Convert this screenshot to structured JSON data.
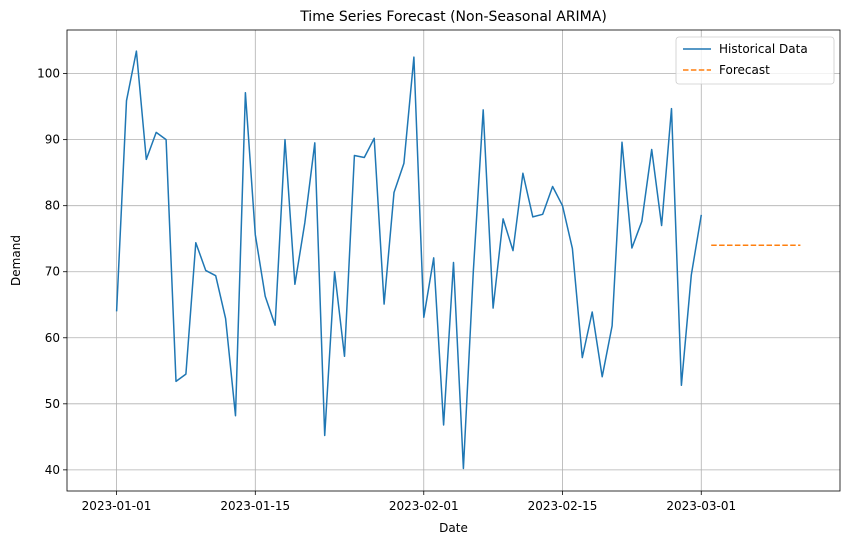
{
  "chart_data": {
    "type": "line",
    "title": "Time Series Forecast (Non-Seasonal ARIMA)",
    "xlabel": "Date",
    "ylabel": "Demand",
    "xlim": [
      "2022-12-27",
      "2023-03-15"
    ],
    "ylim": [
      36.8,
      106.6
    ],
    "xticks": [
      "2023-01-01",
      "2023-01-15",
      "2023-02-01",
      "2023-02-15",
      "2023-03-01"
    ],
    "yticks": [
      40,
      50,
      60,
      70,
      80,
      90,
      100
    ],
    "grid": true,
    "legend_position": "top-right",
    "colors": {
      "historical": "#1f77b4",
      "forecast": "#ff7f0e"
    },
    "series": [
      {
        "name": "Historical Data",
        "style": "solid",
        "x": [
          "2023-01-01",
          "2023-01-02",
          "2023-01-03",
          "2023-01-04",
          "2023-01-05",
          "2023-01-06",
          "2023-01-07",
          "2023-01-08",
          "2023-01-09",
          "2023-01-10",
          "2023-01-11",
          "2023-01-12",
          "2023-01-13",
          "2023-01-14",
          "2023-01-15",
          "2023-01-16",
          "2023-01-17",
          "2023-01-18",
          "2023-01-19",
          "2023-01-20",
          "2023-01-21",
          "2023-01-22",
          "2023-01-23",
          "2023-01-24",
          "2023-01-25",
          "2023-01-26",
          "2023-01-27",
          "2023-01-28",
          "2023-01-29",
          "2023-01-30",
          "2023-01-31",
          "2023-02-01",
          "2023-02-02",
          "2023-02-03",
          "2023-02-04",
          "2023-02-05",
          "2023-02-06",
          "2023-02-07",
          "2023-02-08",
          "2023-02-09",
          "2023-02-10",
          "2023-02-11",
          "2023-02-12",
          "2023-02-13",
          "2023-02-14",
          "2023-02-15",
          "2023-02-16",
          "2023-02-17",
          "2023-02-18",
          "2023-02-19",
          "2023-02-20",
          "2023-02-21",
          "2023-02-22",
          "2023-02-23",
          "2023-02-24",
          "2023-02-25",
          "2023-02-26",
          "2023-02-27",
          "2023-02-28",
          "2023-03-01"
        ],
        "values": [
          64.0,
          95.9,
          103.4,
          87.0,
          91.1,
          90.0,
          53.4,
          54.5,
          74.4,
          70.2,
          69.4,
          62.9,
          48.2,
          97.1,
          75.6,
          66.3,
          61.9,
          90.0,
          68.1,
          77.4,
          89.5,
          45.2,
          70.0,
          57.2,
          87.6,
          87.3,
          90.2,
          65.1,
          82.0,
          86.4,
          102.5,
          63.1,
          72.1,
          46.8,
          71.4,
          40.2,
          70.0,
          94.5,
          64.5,
          78.0,
          73.2,
          84.9,
          78.3,
          78.7,
          82.9,
          80.0,
          73.5,
          57.0,
          63.9,
          54.1,
          61.8,
          89.6,
          73.6,
          77.6,
          88.5,
          77.0,
          94.7,
          52.8,
          69.5,
          78.6
        ]
      },
      {
        "name": "Forecast",
        "style": "dashed",
        "x": [
          "2023-03-02",
          "2023-03-11"
        ],
        "values": [
          74.0,
          74.0
        ]
      }
    ]
  }
}
